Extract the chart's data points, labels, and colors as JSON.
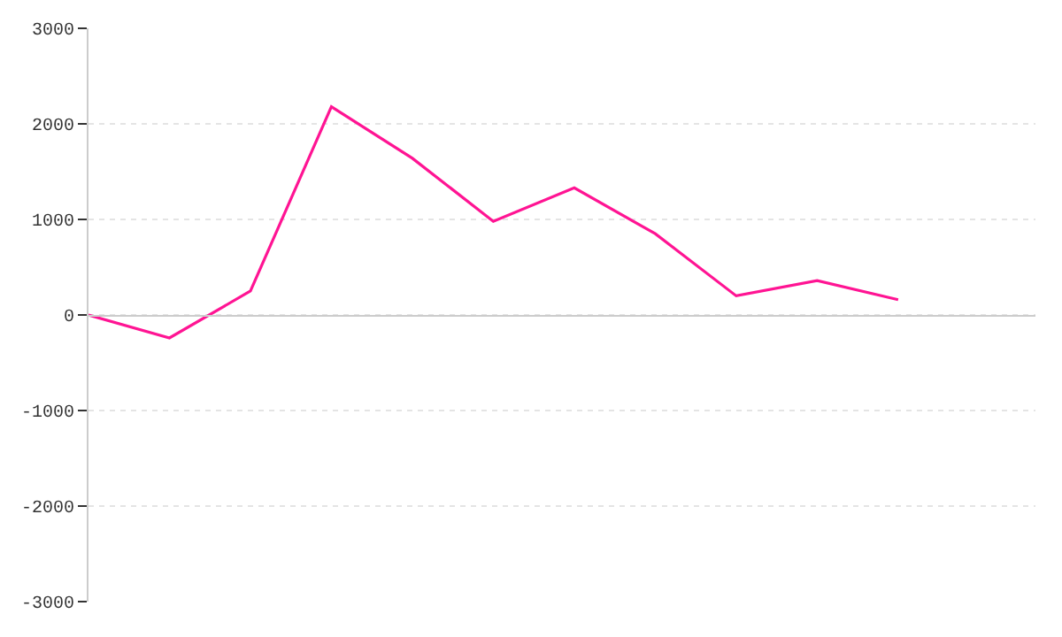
{
  "chart_data": {
    "type": "line",
    "categories": [
      null,
      null,
      null,
      null,
      null,
      null,
      null,
      null,
      null,
      null,
      null
    ],
    "series": [
      {
        "color": "#ff1493",
        "values": [
          0,
          -240,
          250,
          2180,
          1640,
          980,
          1330,
          850,
          200,
          360,
          160
        ]
      }
    ],
    "ylim": [
      -3000,
      3000
    ],
    "yticks": [
      -3000,
      -2000,
      -1000,
      0,
      1000,
      2000,
      3000
    ],
    "grid": "y",
    "tick_labels": "y",
    "marker": "none",
    "line_style": "solid"
  }
}
